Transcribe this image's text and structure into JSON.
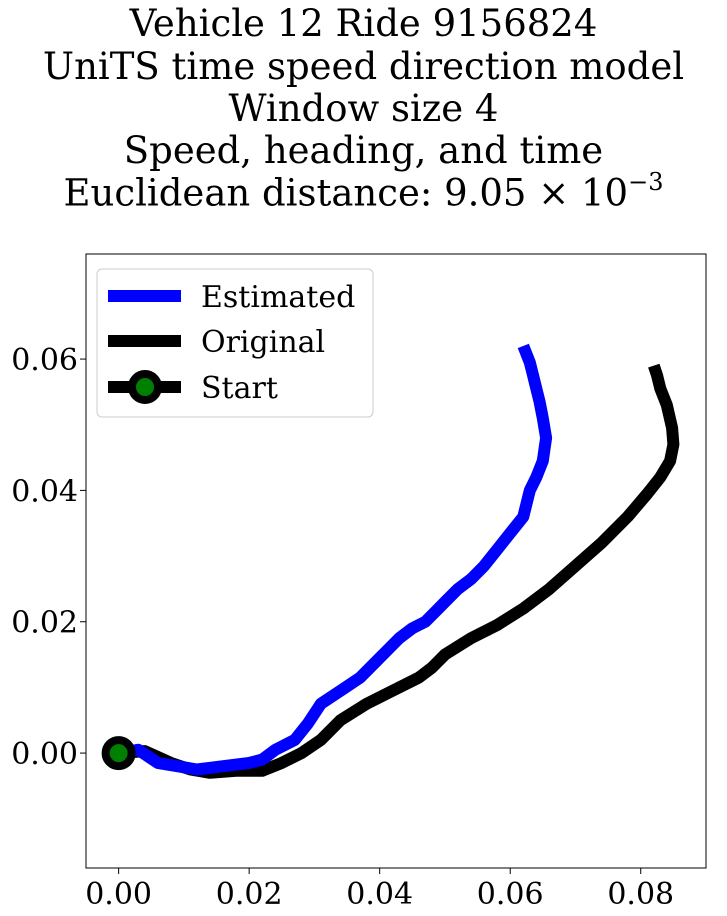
{
  "chart_data": {
    "type": "line",
    "title_lines": [
      "Vehicle 12 Ride 9156824",
      "UniTS time speed direction model",
      "Window size 4",
      "Speed, heading, and time",
      "Euclidean distance: 9.05 × 10",
      "−3"
    ],
    "xlim": [
      -0.005,
      0.09
    ],
    "ylim": [
      -0.0175,
      0.076
    ],
    "xticks": [
      0.0,
      0.02,
      0.04,
      0.06,
      0.08
    ],
    "yticks": [
      0.0,
      0.02,
      0.04,
      0.06
    ],
    "xtick_labels": [
      "0.00",
      "0.02",
      "0.04",
      "0.06",
      "0.08"
    ],
    "ytick_labels": [
      "0.00",
      "0.02",
      "0.04",
      "0.06"
    ],
    "grid": false,
    "legend_placement": "upper-left",
    "series": [
      {
        "name": "Estimated",
        "color": "#0000ff",
        "x": [
          0.0,
          0.003,
          0.006,
          0.009,
          0.012,
          0.016,
          0.02,
          0.022,
          0.024,
          0.027,
          0.029,
          0.031,
          0.034,
          0.037,
          0.04,
          0.043,
          0.045,
          0.047,
          0.049,
          0.05,
          0.052,
          0.054,
          0.056,
          0.058,
          0.06,
          0.062,
          0.063,
          0.064,
          0.065,
          0.0655,
          0.065,
          0.0645,
          0.064,
          0.0635,
          0.063,
          0.062
        ],
        "y": [
          0.0,
          0.0005,
          -0.0015,
          -0.002,
          -0.0025,
          -0.002,
          -0.0015,
          -0.001,
          0.0005,
          0.002,
          0.0045,
          0.0075,
          0.0095,
          0.0115,
          0.0145,
          0.0175,
          0.019,
          0.02,
          0.022,
          0.023,
          0.025,
          0.0265,
          0.0285,
          0.031,
          0.0335,
          0.036,
          0.04,
          0.042,
          0.0445,
          0.048,
          0.051,
          0.0535,
          0.0555,
          0.0575,
          0.0595,
          0.062
        ]
      },
      {
        "name": "Original",
        "color": "#000000",
        "x": [
          0.0,
          0.004,
          0.008,
          0.011,
          0.014,
          0.018,
          0.022,
          0.025,
          0.028,
          0.031,
          0.034,
          0.038,
          0.042,
          0.046,
          0.048,
          0.05,
          0.054,
          0.058,
          0.062,
          0.066,
          0.07,
          0.074,
          0.078,
          0.081,
          0.083,
          0.0845,
          0.085,
          0.0848,
          0.084,
          0.083,
          0.0825,
          0.082
        ],
        "y": [
          0.0,
          0.0003,
          -0.0015,
          -0.0025,
          -0.003,
          -0.0027,
          -0.0027,
          -0.0015,
          0.0,
          0.002,
          0.005,
          0.0075,
          0.0095,
          0.0115,
          0.013,
          0.015,
          0.0175,
          0.0195,
          0.022,
          0.025,
          0.0285,
          0.032,
          0.036,
          0.0395,
          0.042,
          0.0445,
          0.047,
          0.0495,
          0.053,
          0.0555,
          0.0575,
          0.059
        ]
      },
      {
        "name": "Start",
        "color": "#000000",
        "marker_face_color": "#008000",
        "x": [
          0.0
        ],
        "y": [
          0.0
        ]
      }
    ]
  }
}
